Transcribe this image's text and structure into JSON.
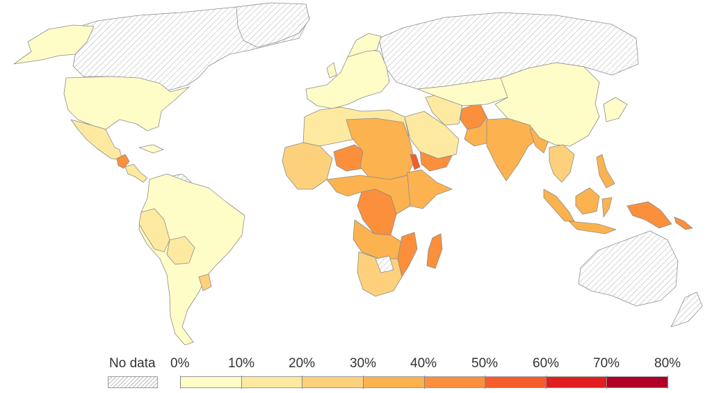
{
  "legend": {
    "no_data_label": "No data",
    "no_data_pattern": "gray-diagonal-hatch",
    "bins": [
      {
        "from": 0,
        "to": 10,
        "color": "#fefcc7"
      },
      {
        "from": 10,
        "to": 20,
        "color": "#fde9a0"
      },
      {
        "from": 20,
        "to": 30,
        "color": "#fdd07c"
      },
      {
        "from": 30,
        "to": 40,
        "color": "#fcb24e"
      },
      {
        "from": 40,
        "to": 50,
        "color": "#fc8f3c"
      },
      {
        "from": 50,
        "to": 60,
        "color": "#f65b2a"
      },
      {
        "from": 60,
        "to": 70,
        "color": "#e11f1f"
      },
      {
        "from": 70,
        "to": 80,
        "color": "#b00026"
      }
    ],
    "tick_labels": [
      "0%",
      "10%",
      "20%",
      "30%",
      "40%",
      "50%",
      "60%",
      "70%",
      "80%"
    ]
  },
  "map": {
    "projection": "world",
    "border_color": "#8c8c8c",
    "no_data_fill": "hatched",
    "regions": [
      {
        "name": "Canada",
        "bin": "no-data"
      },
      {
        "name": "Greenland",
        "bin": "no-data"
      },
      {
        "name": "Alaska",
        "bin": "0-10"
      },
      {
        "name": "United States",
        "bin": "0-10"
      },
      {
        "name": "Mexico",
        "bin": "10-20"
      },
      {
        "name": "Guatemala",
        "bin": "40-50"
      },
      {
        "name": "Central America",
        "bin": "10-20"
      },
      {
        "name": "South America",
        "bin": "0-10"
      },
      {
        "name": "Peru",
        "bin": "10-20"
      },
      {
        "name": "Bolivia",
        "bin": "10-20"
      },
      {
        "name": "Paraguay",
        "bin": "20-30"
      },
      {
        "name": "Europe",
        "bin": "0-10"
      },
      {
        "name": "Russia",
        "bin": "no-data"
      },
      {
        "name": "North Africa",
        "bin": "10-20"
      },
      {
        "name": "West Africa",
        "bin": "20-30"
      },
      {
        "name": "Niger",
        "bin": "40-50"
      },
      {
        "name": "Sahel",
        "bin": "30-40"
      },
      {
        "name": "Eritrea",
        "bin": "50-60"
      },
      {
        "name": "Yemen",
        "bin": "40-50"
      },
      {
        "name": "Ethiopia",
        "bin": "30-40"
      },
      {
        "name": "DR Congo",
        "bin": "40-50"
      },
      {
        "name": "Central Africa",
        "bin": "30-40"
      },
      {
        "name": "Mozambique",
        "bin": "40-50"
      },
      {
        "name": "Madagascar",
        "bin": "40-50"
      },
      {
        "name": "Southern Africa",
        "bin": "20-30"
      },
      {
        "name": "Arabia",
        "bin": "10-20"
      },
      {
        "name": "Afghanistan",
        "bin": "40-50"
      },
      {
        "name": "Pakistan",
        "bin": "30-40"
      },
      {
        "name": "India",
        "bin": "30-40"
      },
      {
        "name": "Central Asia",
        "bin": "0-10"
      },
      {
        "name": "China",
        "bin": "0-10"
      },
      {
        "name": "Southeast Asia",
        "bin": "20-30"
      },
      {
        "name": "Indonesia",
        "bin": "30-40"
      },
      {
        "name": "Papua New Guinea",
        "bin": "40-50"
      },
      {
        "name": "Australia",
        "bin": "no-data"
      }
    ]
  }
}
